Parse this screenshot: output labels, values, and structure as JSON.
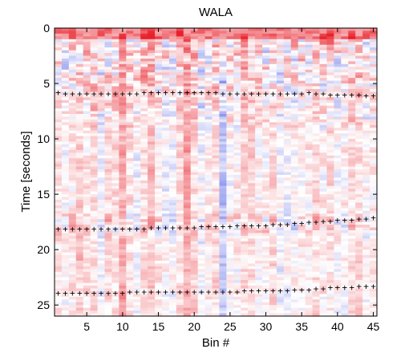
{
  "chart_data": {
    "type": "heatmap",
    "title": "WALA",
    "xlabel": "Bin #",
    "ylabel": "Time [seconds]",
    "xlim": [
      0.5,
      45.5
    ],
    "ylim": [
      26,
      0
    ],
    "x_ticks": [
      5,
      10,
      15,
      20,
      25,
      30,
      35,
      40,
      45
    ],
    "y_ticks": [
      0,
      5,
      10,
      15,
      20,
      25
    ],
    "colormap": {
      "negative": "#2233dd",
      "zero": "#ffffff",
      "positive": "#e8202a"
    },
    "bins": 45,
    "grid": false,
    "pick_marker": "+",
    "picks": [
      {
        "name": "",
        "bins": [
          1,
          45
        ],
        "times": [
          5.8,
          5.9,
          5.9,
          5.9,
          5.9,
          5.9,
          5.9,
          5.9,
          5.9,
          5.9,
          5.9,
          5.9,
          5.8,
          5.8,
          5.8,
          5.8,
          5.8,
          5.8,
          5.8,
          5.8,
          5.8,
          5.8,
          5.8,
          5.9,
          5.9,
          5.9,
          5.9,
          5.9,
          5.9,
          5.9,
          5.9,
          5.9,
          5.9,
          5.9,
          5.9,
          5.8,
          5.9,
          5.9,
          6.0,
          6.0,
          6.0,
          6.0,
          6.0,
          6.1,
          6.1
        ]
      },
      {
        "name": "",
        "bins": [
          1,
          45
        ],
        "times": [
          18.1,
          18.1,
          18.1,
          18.1,
          18.1,
          18.1,
          18.1,
          18.1,
          18.1,
          18.1,
          18.1,
          18.1,
          18.1,
          18.0,
          18.0,
          18.0,
          18.0,
          18.0,
          18.0,
          18.0,
          17.9,
          17.9,
          17.9,
          17.9,
          17.9,
          17.8,
          17.8,
          17.8,
          17.8,
          17.8,
          17.7,
          17.7,
          17.7,
          17.6,
          17.6,
          17.5,
          17.5,
          17.4,
          17.4,
          17.3,
          17.3,
          17.3,
          17.2,
          17.2,
          17.1
        ]
      },
      {
        "name": "",
        "bins": [
          1,
          45
        ],
        "times": [
          23.9,
          23.9,
          23.9,
          23.9,
          23.9,
          23.9,
          23.9,
          23.9,
          23.9,
          23.9,
          23.8,
          23.8,
          23.8,
          23.8,
          23.8,
          23.8,
          23.8,
          23.8,
          23.8,
          23.8,
          23.8,
          23.8,
          23.8,
          23.8,
          23.8,
          23.8,
          23.7,
          23.7,
          23.7,
          23.7,
          23.7,
          23.7,
          23.7,
          23.6,
          23.6,
          23.6,
          23.5,
          23.5,
          23.4,
          23.4,
          23.4,
          23.4,
          23.3,
          23.3,
          23.3
        ]
      }
    ]
  }
}
